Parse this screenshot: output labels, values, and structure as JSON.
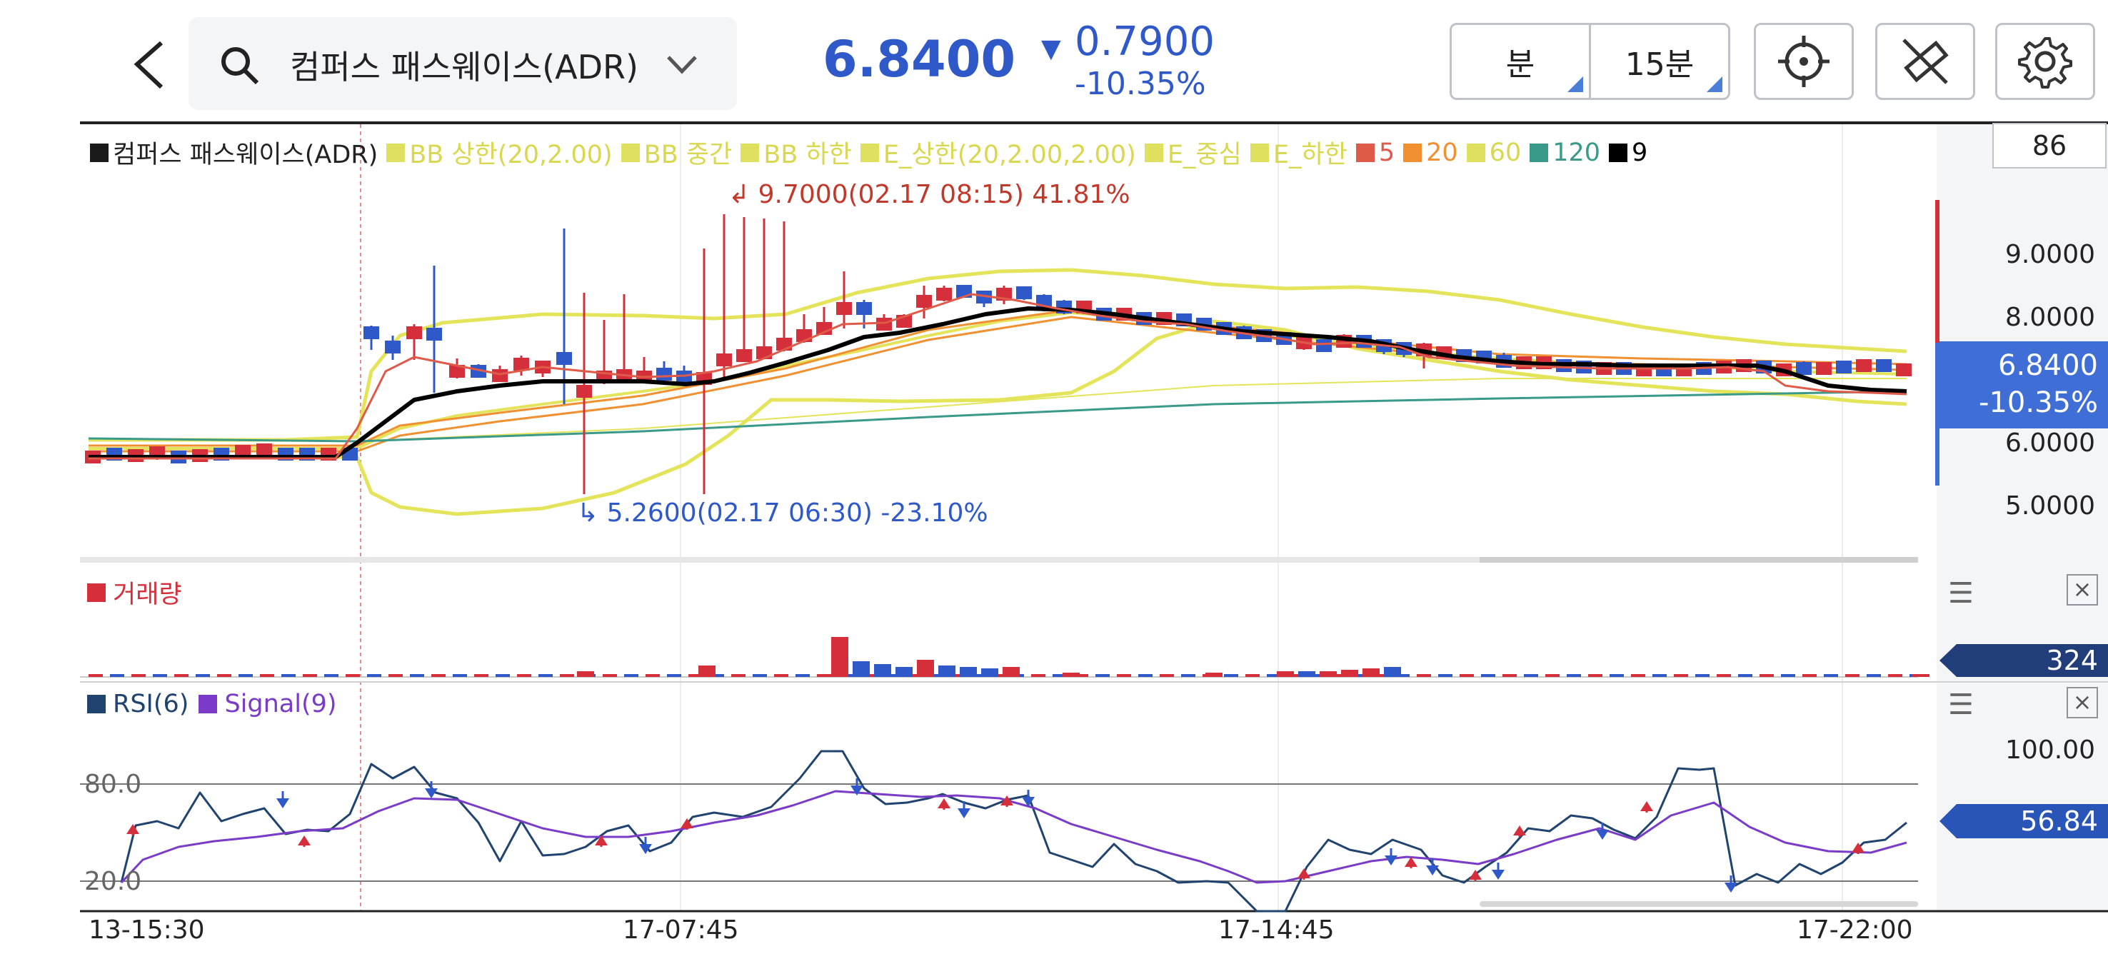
{
  "header": {
    "search_text": "컴퍼스 패스웨이스(ADR)",
    "price": "6.8400",
    "change": "0.7900",
    "change_pct": "-10.35%",
    "period_unit": "분",
    "period_value": "15분",
    "icons": [
      "back-icon",
      "search-icon",
      "chevron-down-icon",
      "crosshair-icon",
      "draw-off-icon",
      "gear-icon"
    ]
  },
  "legend": {
    "items": [
      {
        "label": "컴퍼스 패스웨이스(ADR)",
        "color": "#1a1a1a",
        "text_color": "#222222"
      },
      {
        "label": "BB 상한(20,2.00)",
        "color": "#e0e060",
        "text_color": "#d8d850"
      },
      {
        "label": "BB 중간",
        "color": "#e0e060",
        "text_color": "#d8d850"
      },
      {
        "label": "BB 하한",
        "color": "#e0e060",
        "text_color": "#d8d850"
      },
      {
        "label": "E_상한(20,2.00,2.00)",
        "color": "#e0e060",
        "text_color": "#d8d850"
      },
      {
        "label": "E_중심",
        "color": "#e0e060",
        "text_color": "#d8d850"
      },
      {
        "label": "E_하한",
        "color": "#e0e060",
        "text_color": "#d8d850"
      },
      {
        "label": "5",
        "color": "#e05a4a",
        "text_color": "#e05a4a"
      },
      {
        "label": "20",
        "color": "#f09030",
        "text_color": "#f09030"
      },
      {
        "label": "60",
        "color": "#e0e060",
        "text_color": "#d8d850"
      },
      {
        "label": "120",
        "color": "#3a9a8a",
        "text_color": "#3a9a8a"
      },
      {
        "label": "9",
        "color": "#000000",
        "text_color": "#000000"
      }
    ]
  },
  "main_chart": {
    "axis_box_value": "86",
    "y_ticks": [
      "9.0000",
      "8.0000",
      "6.0000",
      "5.0000"
    ],
    "current_price": "6.8400",
    "current_pct": "-10.35%",
    "high_annotation": "9.7000(02.17 08:15) 41.81%",
    "low_annotation": "5.2600(02.17 06:30) -23.10%"
  },
  "volume_panel": {
    "title": "거래량",
    "value": "324"
  },
  "rsi_panel": {
    "title_rsi": "RSI(6)",
    "title_signal": "Signal(9)",
    "level_80": "80.0",
    "level_20": "20.0",
    "axis_top": "100.00",
    "value": "56.84"
  },
  "x_axis": {
    "labels": [
      "13-15:30",
      "17-07:45",
      "17-14:45",
      "17-22:00"
    ]
  },
  "colors": {
    "up": "#d42f3a",
    "down": "#2f58c8",
    "bb": "#e4e45a",
    "ma5": "#e05a4a",
    "ma20": "#f09030",
    "ma120": "#3a9a8a",
    "ma9": "#000000",
    "rsi": "#21436f",
    "signal": "#7a3cc8"
  }
}
